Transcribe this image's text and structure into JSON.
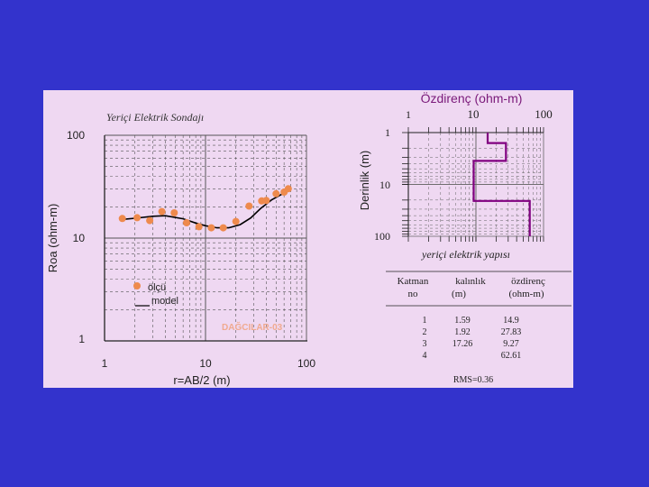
{
  "left_chart": {
    "title": "Yeriçi Elektrik Sondajı",
    "ylabel": "Roa (ohm-m)",
    "xlabel": "r=AB/2 (m)",
    "x_ticks": [
      "1",
      "10",
      "100"
    ],
    "y_ticks": [
      "100",
      "10",
      "1"
    ],
    "legend_measured": "ölçü",
    "legend_model": "model",
    "watermark": "DAĞCILAR-03",
    "colors": {
      "points": "#ee8a4d",
      "model": "#000000",
      "grid": "#555555"
    }
  },
  "right_chart": {
    "title": "Özdirenç (ohm-m)",
    "ylabel": "Derinlik (m)",
    "x_ticks": [
      "1",
      "10",
      "100"
    ],
    "y_ticks": [
      "1",
      "10",
      "100"
    ],
    "caption": "yeriçi elektrik yapısı",
    "colors": {
      "profile": "#800080"
    }
  },
  "table": {
    "headers": [
      [
        "Katman",
        "no"
      ],
      [
        "kalınlık",
        "(m)"
      ],
      [
        "özdirenç",
        "(ohm-m)"
      ]
    ],
    "rows": [
      [
        "1",
        "1.59",
        "14.9"
      ],
      [
        "2",
        "1.92",
        "27.83"
      ],
      [
        "3",
        "17.26",
        "9.27"
      ],
      [
        "4",
        "",
        "62.61"
      ]
    ],
    "rms": "RMS=0.36"
  },
  "chart_data": [
    {
      "type": "scatter",
      "title": "Yeriçi Elektrik Sondajı",
      "xlabel": "r=AB/2 (m)",
      "ylabel": "Roa (ohm-m)",
      "xscale": "log",
      "yscale": "log",
      "xlim": [
        1,
        100
      ],
      "ylim": [
        1,
        100
      ],
      "grid": true,
      "legend_placement": "bottom-left",
      "series": [
        {
          "name": "ölçü",
          "kind": "points",
          "x": [
            1.5,
            2.1,
            2.8,
            3.7,
            4.9,
            6.5,
            8.6,
            11.4,
            15,
            20,
            27,
            36,
            40,
            50,
            60,
            66
          ],
          "y": [
            15.5,
            15.8,
            14.8,
            18.1,
            17.6,
            14.1,
            12.9,
            12.6,
            12.6,
            14.5,
            20.5,
            23,
            23.2,
            27,
            28,
            30.2
          ]
        },
        {
          "name": "model",
          "kind": "line",
          "x": [
            1.5,
            2,
            3,
            4,
            6,
            8,
            10,
            13,
            17,
            22,
            28,
            35,
            45,
            60,
            66
          ],
          "y": [
            15.2,
            15.6,
            16.3,
            16.5,
            15.4,
            14,
            13.2,
            12.6,
            12.6,
            13.5,
            15.7,
            19.3,
            23.5,
            27.5,
            29.4
          ]
        }
      ]
    },
    {
      "type": "line",
      "title": "Özdirenç (ohm-m)",
      "ylabel": "Derinlik (m)",
      "xscale": "log",
      "yscale": "log",
      "xlim": [
        1,
        100
      ],
      "ylim": [
        1,
        100
      ],
      "y_inverted": true,
      "x_axis_position": "top",
      "series": [
        {
          "name": "",
          "kind": "step",
          "x": [
            14.9,
            14.9,
            27.83,
            27.83,
            9.27,
            9.27,
            62.61,
            62.61
          ],
          "y": [
            1,
            1.59,
            1.59,
            3.51,
            3.51,
            20.77,
            20.77,
            100
          ]
        }
      ]
    }
  ]
}
